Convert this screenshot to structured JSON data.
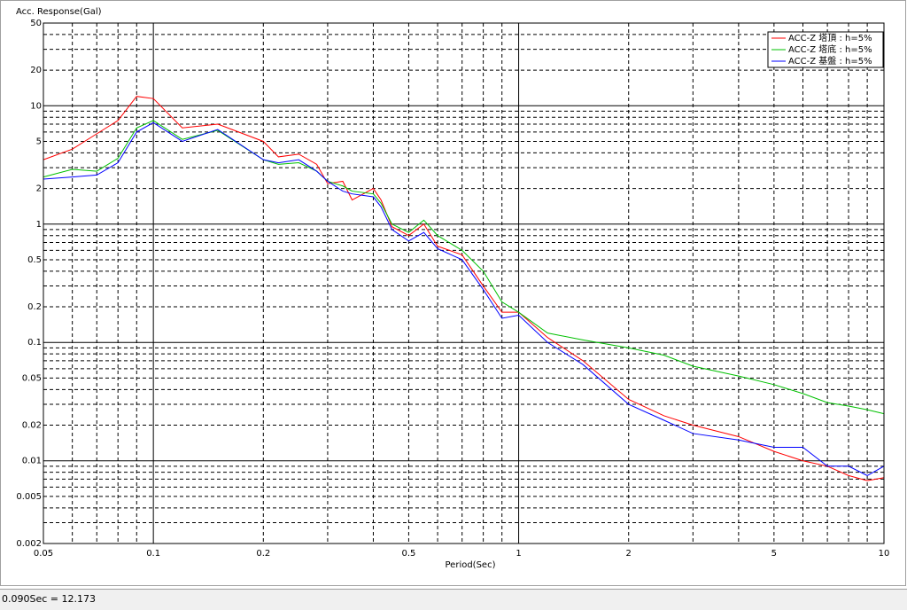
{
  "chart_data": {
    "type": "line",
    "ylabel": "Acc. Response(Gal)",
    "xlabel": "Period(Sec)",
    "log_x": true,
    "log_y": true,
    "grid": true,
    "legend": "upper right",
    "xlim": [
      0.05,
      10
    ],
    "ylim": [
      0.002,
      50
    ],
    "xticks": [
      0.05,
      0.1,
      0.2,
      0.5,
      1,
      2,
      5,
      10
    ],
    "yticks": [
      0.002,
      0.005,
      0.01,
      0.02,
      0.05,
      0.1,
      0.2,
      0.5,
      1,
      2,
      5,
      10,
      20,
      50
    ],
    "x_minor_grid": [
      0.06,
      0.07,
      0.08,
      0.09,
      0.3,
      0.4,
      0.6,
      0.7,
      0.8,
      0.9,
      3,
      4,
      6,
      7,
      8,
      9
    ],
    "y_minor_grid": [
      0.003,
      0.004,
      0.006,
      0.007,
      0.008,
      0.009,
      0.03,
      0.04,
      0.06,
      0.07,
      0.08,
      0.09,
      0.3,
      0.4,
      0.6,
      0.7,
      0.8,
      0.9,
      3,
      4,
      6,
      7,
      8,
      9,
      30,
      40
    ],
    "x": [
      0.05,
      0.06,
      0.07,
      0.08,
      0.09,
      0.1,
      0.12,
      0.15,
      0.2,
      0.22,
      0.25,
      0.28,
      0.3,
      0.33,
      0.35,
      0.4,
      0.42,
      0.45,
      0.5,
      0.55,
      0.6,
      0.7,
      0.8,
      0.9,
      1,
      1.2,
      1.5,
      2,
      2.5,
      3,
      4,
      5,
      6,
      7,
      8,
      9,
      10
    ],
    "series": [
      {
        "name": "ACC-Z 塔頂 : h=5%",
        "color": "#ff0000",
        "values": [
          3.5,
          4.3,
          5.8,
          7.5,
          12,
          11.5,
          6.5,
          7,
          5,
          3.7,
          3.9,
          3.2,
          2.2,
          2.3,
          1.6,
          2,
          1.6,
          0.95,
          0.8,
          1,
          0.65,
          0.55,
          0.3,
          0.18,
          0.18,
          0.11,
          0.07,
          0.033,
          0.024,
          0.02,
          0.016,
          0.012,
          0.01,
          0.009,
          0.0075,
          0.0068,
          0.0072
        ]
      },
      {
        "name": "ACC-Z 塔底 : h=5%",
        "color": "#00c000",
        "values": [
          2.5,
          2.9,
          2.8,
          3.6,
          6.5,
          7.5,
          5.2,
          6.2,
          3.5,
          3.2,
          3.3,
          2.8,
          2.3,
          2.1,
          1.9,
          1.8,
          1.5,
          1,
          0.85,
          1.08,
          0.8,
          0.6,
          0.4,
          0.22,
          0.18,
          0.12,
          0.105,
          0.09,
          0.078,
          0.063,
          0.052,
          0.044,
          0.037,
          0.031,
          0.029,
          0.027,
          0.025
        ]
      },
      {
        "name": "ACC-Z 基盤 : h=5%",
        "color": "#0000ff",
        "values": [
          2.4,
          2.5,
          2.6,
          3.3,
          6,
          7.2,
          5,
          6.3,
          3.5,
          3.3,
          3.5,
          2.8,
          2.3,
          1.9,
          1.8,
          1.7,
          1.4,
          0.9,
          0.72,
          0.85,
          0.62,
          0.5,
          0.28,
          0.16,
          0.17,
          0.1,
          0.065,
          0.03,
          0.022,
          0.017,
          0.015,
          0.013,
          0.013,
          0.009,
          0.009,
          0.0075,
          0.009
        ]
      }
    ]
  },
  "status_bar": {
    "text": "0.090Sec = 12.173"
  }
}
